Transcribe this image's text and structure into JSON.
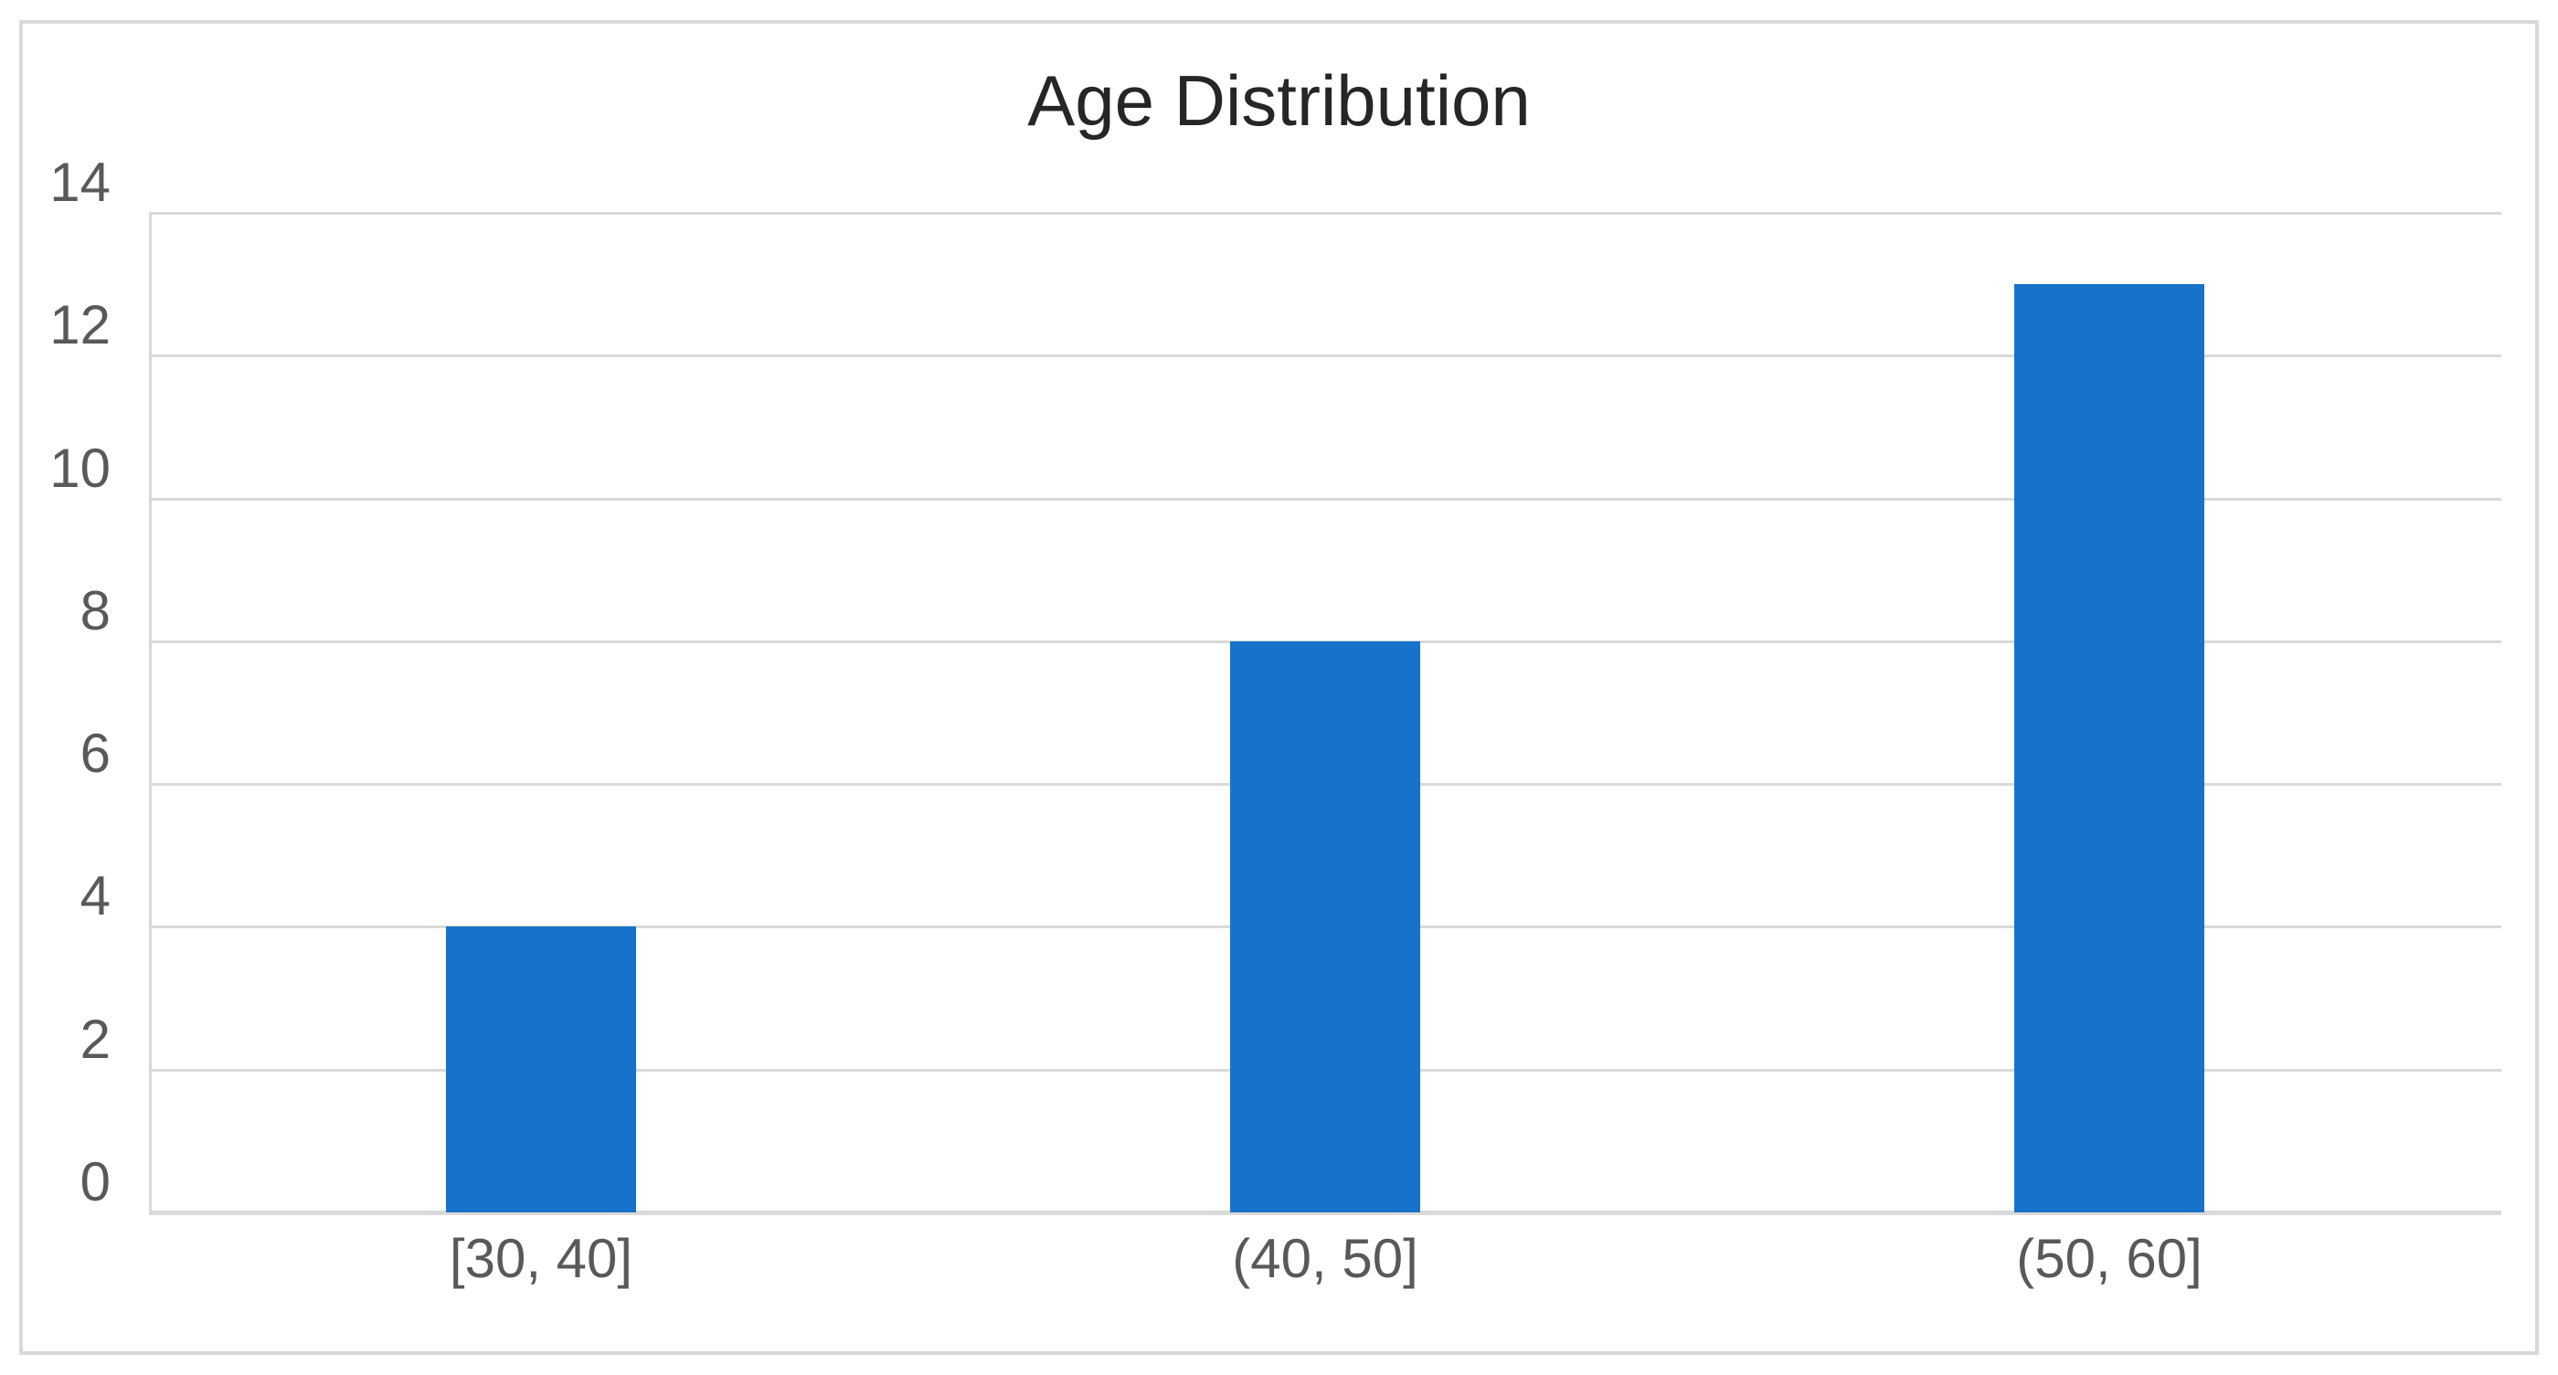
{
  "window": {
    "background": "#FFFFFF"
  },
  "chart": {
    "title": "Age Distribution",
    "colors": {
      "bar": "#1773C9",
      "gridline": "#D9D9D9",
      "axis_line": "#D9D9D9",
      "border": "#D9D9D9",
      "tick_label": "#595959",
      "title": "#262626",
      "background": "#FFFFFF"
    }
  },
  "chart_data": {
    "type": "bar",
    "title": "Age Distribution",
    "categories": [
      "[30, 40]",
      "(40, 50]",
      "(50, 60]"
    ],
    "values": [
      4,
      8,
      13
    ],
    "xlabel": "",
    "ylabel": "",
    "ylim": [
      0,
      14
    ],
    "ytick_step": 2,
    "yticks": [
      0,
      2,
      4,
      6,
      8,
      10,
      12,
      14
    ],
    "grid": true,
    "legend_position": "none",
    "bar_color": "#1773C9"
  }
}
